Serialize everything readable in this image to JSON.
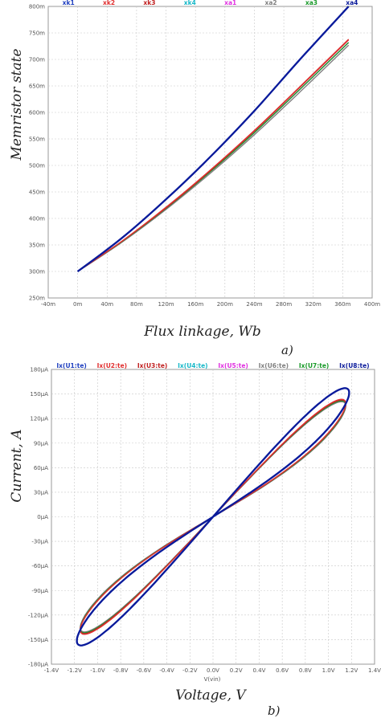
{
  "chart_data": [
    {
      "type": "line",
      "panel_label": "a)",
      "xlabel": "Flux linkage, Wb",
      "ylabel": "Memristor state",
      "xlim": [
        -40,
        400
      ],
      "ylim": [
        250,
        800
      ],
      "x_ticks": [
        "-40m",
        "0m",
        "40m",
        "80m",
        "120m",
        "160m",
        "200m",
        "240m",
        "280m",
        "320m",
        "360m",
        "400m"
      ],
      "y_ticks": [
        "250m",
        "300m",
        "350m",
        "400m",
        "450m",
        "500m",
        "550m",
        "600m",
        "650m",
        "700m",
        "750m",
        "800m"
      ],
      "grid": true,
      "legend_position": "top",
      "series": [
        {
          "name": "xk1",
          "color": "#1f3fbf",
          "x": [
            0,
            60,
            120,
            180,
            240,
            300,
            368
          ],
          "y": [
            300,
            363,
            436,
            516,
            603,
            697,
            800
          ]
        },
        {
          "name": "xk2",
          "color": "#e03030",
          "x": [
            0,
            60,
            120,
            180,
            240,
            300,
            368
          ],
          "y": [
            300,
            357,
            421,
            491,
            566,
            646,
            738
          ]
        },
        {
          "name": "xk3",
          "color": "#c02020",
          "x": [
            0,
            60,
            120,
            180,
            240,
            300,
            368
          ],
          "y": [
            300,
            357,
            420,
            490,
            565,
            645,
            737
          ]
        },
        {
          "name": "xk4",
          "color": "#18b8c8",
          "x": [
            0,
            60,
            120,
            180,
            240,
            300,
            368
          ],
          "y": [
            300,
            363,
            436,
            516,
            603,
            697,
            800
          ]
        },
        {
          "name": "xa1",
          "color": "#e030e0",
          "x": [
            0,
            60,
            120,
            180,
            240,
            300,
            368
          ],
          "y": [
            300,
            356,
            419,
            488,
            562,
            641,
            732
          ]
        },
        {
          "name": "xa2",
          "color": "#808080",
          "x": [
            0,
            60,
            120,
            180,
            240,
            300,
            368
          ],
          "y": [
            300,
            355,
            417,
            485,
            558,
            636,
            727
          ]
        },
        {
          "name": "xa3",
          "color": "#1a9a2a",
          "x": [
            0,
            60,
            120,
            180,
            240,
            300,
            368
          ],
          "y": [
            300,
            356,
            419,
            488,
            562,
            641,
            732
          ]
        },
        {
          "name": "xa4",
          "color": "#0a1a9a",
          "x": [
            0,
            60,
            120,
            180,
            240,
            300,
            368
          ],
          "y": [
            300,
            363,
            436,
            516,
            603,
            697,
            800
          ]
        }
      ]
    },
    {
      "type": "line",
      "panel_label": "b)",
      "xlabel": "Voltage, V",
      "ylabel": "Current, A",
      "x_axis_name": "V(vin)",
      "xlim": [
        -1.4,
        1.4
      ],
      "ylim": [
        -180,
        180
      ],
      "x_ticks": [
        "-1.4V",
        "-1.2V",
        "-1.0V",
        "-0.8V",
        "-0.6V",
        "-0.4V",
        "-0.2V",
        "0.0V",
        "0.2V",
        "0.4V",
        "0.6V",
        "0.8V",
        "1.0V",
        "1.2V",
        "1.4V"
      ],
      "y_ticks": [
        "180µA",
        "150µA",
        "120µA",
        "90µA",
        "60µA",
        "30µA",
        "0µA",
        "-30µA",
        "-60µA",
        "-90µA",
        "-120µA",
        "-150µA",
        "-180µA"
      ],
      "grid": true,
      "legend_position": "top",
      "series": [
        {
          "name": "Ix(U1:te)",
          "color": "#1f3fbf",
          "model": {
            "v_amp": 1.18,
            "g_min": 90,
            "g_max": 162,
            "phase_lead": 0.42
          }
        },
        {
          "name": "Ix(U2:te)",
          "color": "#e03030",
          "model": {
            "v_amp": 1.15,
            "g_min": 84,
            "g_max": 152,
            "phase_lead": 0.38
          }
        },
        {
          "name": "Ix(U3:te)",
          "color": "#c02020",
          "model": {
            "v_amp": 1.15,
            "g_min": 84,
            "g_max": 151,
            "phase_lead": 0.38
          }
        },
        {
          "name": "Ix(U4:te)",
          "color": "#18b8c8",
          "model": {
            "v_amp": 1.18,
            "g_min": 90,
            "g_max": 162,
            "phase_lead": 0.42
          }
        },
        {
          "name": "Ix(U5:te)",
          "color": "#e030e0",
          "model": {
            "v_amp": 1.15,
            "g_min": 83,
            "g_max": 150,
            "phase_lead": 0.37
          }
        },
        {
          "name": "Ix(U6:te)",
          "color": "#808080",
          "model": {
            "v_amp": 1.15,
            "g_min": 82,
            "g_max": 149,
            "phase_lead": 0.37
          }
        },
        {
          "name": "Ix(U7:te)",
          "color": "#1a9a2a",
          "model": {
            "v_amp": 1.15,
            "g_min": 83,
            "g_max": 150,
            "phase_lead": 0.37
          }
        },
        {
          "name": "Ix(U8:te)",
          "color": "#0a1a9a",
          "model": {
            "v_amp": 1.18,
            "g_min": 90,
            "g_max": 162,
            "phase_lead": 0.42
          }
        }
      ]
    }
  ]
}
